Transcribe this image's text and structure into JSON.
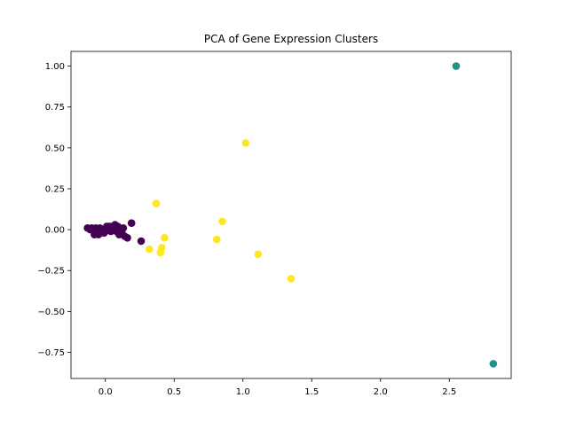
{
  "chart_data": {
    "type": "scatter",
    "title": "PCA of Gene Expression Clusters",
    "xlabel": "",
    "ylabel": "",
    "xlim": [
      -0.25,
      2.95
    ],
    "ylim": [
      -0.91,
      1.09
    ],
    "xticks": [
      0.0,
      0.5,
      1.0,
      1.5,
      2.0,
      2.5
    ],
    "xtick_labels": [
      "0.0",
      "0.5",
      "1.0",
      "1.5",
      "2.0",
      "2.5"
    ],
    "yticks": [
      -0.75,
      -0.5,
      -0.25,
      0.0,
      0.25,
      0.5,
      0.75,
      1.0
    ],
    "ytick_labels": [
      "−0.75",
      "−0.50",
      "−0.25",
      "0.00",
      "0.25",
      "0.50",
      "0.75",
      "1.00"
    ],
    "grid": false,
    "legend": "none",
    "series": [
      {
        "color": "#440154",
        "points": [
          [
            -0.13,
            0.01
          ],
          [
            -0.11,
            0.0
          ],
          [
            -0.1,
            0.01
          ],
          [
            -0.09,
            0.0
          ],
          [
            -0.08,
            -0.01
          ],
          [
            -0.08,
            -0.03
          ],
          [
            -0.07,
            0.01
          ],
          [
            -0.06,
            -0.02
          ],
          [
            -0.05,
            0.0
          ],
          [
            -0.05,
            -0.03
          ],
          [
            -0.04,
            0.01
          ],
          [
            -0.03,
            -0.01
          ],
          [
            -0.02,
            0.0
          ],
          [
            -0.01,
            -0.02
          ],
          [
            0.0,
            -0.01
          ],
          [
            0.01,
            0.02
          ],
          [
            0.02,
            0.0
          ],
          [
            0.03,
            0.02
          ],
          [
            0.04,
            -0.01
          ],
          [
            0.05,
            0.02
          ],
          [
            0.06,
            0.01
          ],
          [
            0.07,
            0.03
          ],
          [
            0.08,
            -0.01
          ],
          [
            0.09,
            0.02
          ],
          [
            0.1,
            -0.03
          ],
          [
            0.12,
            -0.02
          ],
          [
            0.13,
            0.01
          ],
          [
            0.14,
            -0.04
          ],
          [
            0.16,
            -0.05
          ],
          [
            0.19,
            0.04
          ],
          [
            0.26,
            -0.07
          ]
        ]
      },
      {
        "color": "#21918c",
        "points": [
          [
            2.55,
            1.0
          ],
          [
            2.82,
            -0.82
          ]
        ]
      },
      {
        "color": "#fde725",
        "points": [
          [
            0.32,
            -0.12
          ],
          [
            0.37,
            0.16
          ],
          [
            0.4,
            -0.14
          ],
          [
            0.41,
            -0.11
          ],
          [
            0.43,
            -0.05
          ],
          [
            0.81,
            -0.06
          ],
          [
            0.85,
            0.05
          ],
          [
            1.02,
            0.53
          ],
          [
            1.11,
            -0.15
          ],
          [
            1.35,
            -0.3
          ]
        ]
      }
    ]
  }
}
